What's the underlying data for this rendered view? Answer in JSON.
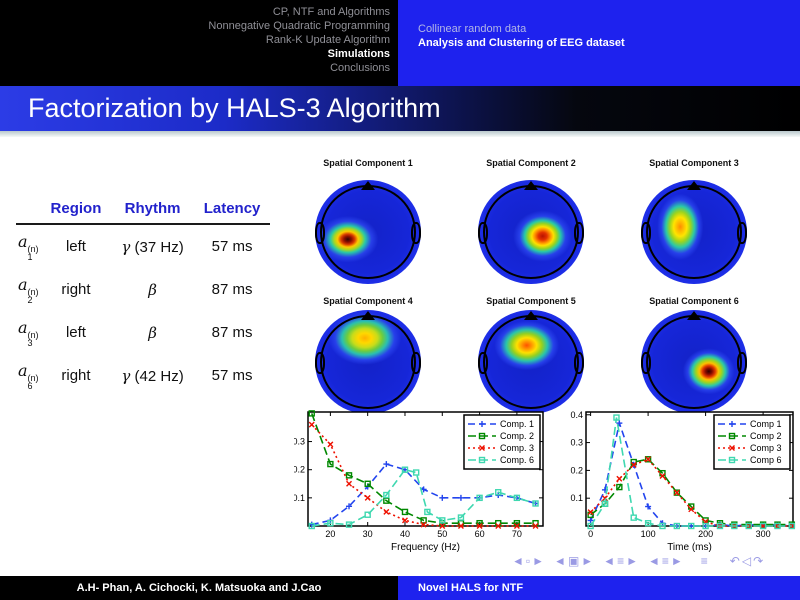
{
  "colors": {
    "header_blue": "#1e22ee",
    "title_gradient_left": "#2c3ce6",
    "table_header_text": "#2222cc",
    "nav_symbols": "#9a9ae4",
    "series_blue": "#2244ee",
    "series_green": "#008800",
    "series_red": "#ee1100",
    "series_cyan": "#3fd8b0"
  },
  "header": {
    "nav_left": [
      {
        "label": "CP, NTF and Algorithms",
        "active": false
      },
      {
        "label": "Nonnegative Quadratic Programming",
        "active": false
      },
      {
        "label": "Rank-K Update Algorithm",
        "active": false
      },
      {
        "label": "Simulations",
        "active": true
      },
      {
        "label": "Conclusions",
        "active": false
      }
    ],
    "nav_right": [
      {
        "label": "Collinear random data",
        "active": false
      },
      {
        "label": "Analysis and Clustering of EEG dataset",
        "active": true
      }
    ]
  },
  "title": "Factorization by HALS-3 Algorithm",
  "table": {
    "headers": [
      "Region",
      "Rhythm",
      "Latency"
    ],
    "rows": [
      {
        "var": "a",
        "sup": "(n)",
        "sub": "1",
        "region": "left",
        "rhythm": "γ (37 Hz)",
        "latency": "57 ms"
      },
      {
        "var": "a",
        "sup": "(n)",
        "sub": "2",
        "region": "right",
        "rhythm": "β",
        "latency": "87 ms"
      },
      {
        "var": "a",
        "sup": "(n)",
        "sub": "3",
        "region": "left",
        "rhythm": "β",
        "latency": "87 ms"
      },
      {
        "var": "a",
        "sup": "(n)",
        "sub": "6",
        "region": "right",
        "rhythm": "γ (42 Hz)",
        "latency": "57 ms"
      }
    ]
  },
  "components": [
    {
      "label": "Spatial Component 1",
      "hot": {
        "x": "31%",
        "y": "57%",
        "rx": "36%",
        "ry": "28%",
        "stops": [
          "#300404 0%",
          "#8c0f00 10%",
          "#d83a00 18%",
          "#ffc800 27%",
          "#a8d820 36%",
          "#28c8a8 46%",
          "#2840e8 62%",
          "rgba(34,52,224,0) 80%"
        ]
      }
    },
    {
      "label": "Spatial Component 2",
      "hot": {
        "x": "61%",
        "y": "54%",
        "rx": "34%",
        "ry": "30%",
        "stops": [
          "#b81400 0%",
          "#e23000 12%",
          "#ff9000 22%",
          "#ffe000 30%",
          "#98d41e 40%",
          "#26c8aa 50%",
          "#2740ea 64%",
          "rgba(34,52,224,0) 82%"
        ]
      }
    },
    {
      "label": "Spatial Component 3",
      "hot": {
        "x": "37%",
        "y": "45%",
        "rx": "26%",
        "ry": "38%",
        "stops": [
          "#ff8c00 0%",
          "#ffc000 14%",
          "#ffe400 24%",
          "#9cd41e 38%",
          "#2ac8a8 52%",
          "#2740ea 68%",
          "rgba(34,52,224,0) 84%"
        ]
      }
    },
    {
      "label": "Spatial Component 4",
      "hot": {
        "x": "47%",
        "y": "27%",
        "rx": "40%",
        "ry": "30%",
        "stops": [
          "#ffb000 0%",
          "#ffd800 16%",
          "#c8dc1a 30%",
          "#6ccc40 42%",
          "#2ac0b0 54%",
          "#2740ea 70%",
          "rgba(34,52,224,0) 86%"
        ]
      }
    },
    {
      "label": "Spatial Component 5",
      "hot": {
        "x": "46%",
        "y": "34%",
        "rx": "36%",
        "ry": "28%",
        "stops": [
          "#ff5200 0%",
          "#ff9c00 14%",
          "#ffe000 26%",
          "#94d020 40%",
          "#28c4ac 54%",
          "#2740ea 70%",
          "rgba(34,52,224,0) 85%"
        ]
      }
    },
    {
      "label": "Spatial Component 6",
      "hot": {
        "x": "64%",
        "y": "59%",
        "rx": "30%",
        "ry": "27%",
        "stops": [
          "#2e0000 0%",
          "#800a00 10%",
          "#e03800 20%",
          "#ffc000 30%",
          "#a0d41e 40%",
          "#2ac8a8 52%",
          "#2740ea 66%",
          "rgba(34,52,224,0) 82%"
        ]
      }
    }
  ],
  "chart_data": [
    {
      "type": "line",
      "title": "",
      "xlabel": "Frequency (Hz)",
      "ylabel": "",
      "xlim": [
        14,
        77
      ],
      "ylim": [
        0,
        0.405
      ],
      "xticks": [
        20,
        30,
        40,
        50,
        60,
        70
      ],
      "yticks": [
        0.1,
        0.2,
        0.3
      ],
      "grid": false,
      "legend_position": "top-right",
      "series": [
        {
          "name": "Comp. 1",
          "color": "#2244ee",
          "dash": "7 4",
          "marker": "plus",
          "x": [
            15,
            20,
            25,
            30,
            35,
            40,
            45,
            50,
            55,
            60,
            65,
            70,
            75
          ],
          "y": [
            0.005,
            0.02,
            0.07,
            0.14,
            0.22,
            0.2,
            0.13,
            0.1,
            0.1,
            0.1,
            0.11,
            0.1,
            0.08
          ]
        },
        {
          "name": "Comp. 2",
          "color": "#008800",
          "dash": "8 4",
          "marker": "square",
          "x": [
            15,
            20,
            25,
            30,
            35,
            40,
            45,
            50,
            55,
            60,
            65,
            70,
            75
          ],
          "y": [
            0.4,
            0.22,
            0.18,
            0.15,
            0.09,
            0.05,
            0.02,
            0.01,
            0.01,
            0.01,
            0.01,
            0.01,
            0.01
          ]
        },
        {
          "name": "Comp. 3",
          "color": "#ee1100",
          "dash": "2 3",
          "marker": "cross",
          "x": [
            15,
            20,
            25,
            30,
            35,
            40,
            45,
            50,
            55,
            60,
            65,
            70,
            75
          ],
          "y": [
            0.36,
            0.29,
            0.15,
            0.1,
            0.05,
            0.02,
            0.005,
            0,
            0,
            0,
            0,
            0,
            0
          ]
        },
        {
          "name": "Comp. 6",
          "color": "#3fd8b0",
          "dash": "8 4",
          "marker": "square",
          "x": [
            15,
            20,
            25,
            30,
            35,
            40,
            43,
            46,
            50,
            55,
            60,
            65,
            70,
            75
          ],
          "y": [
            0,
            0.01,
            0.005,
            0.04,
            0.11,
            0.2,
            0.19,
            0.05,
            0.02,
            0.03,
            0.1,
            0.12,
            0.1,
            0.08
          ]
        }
      ]
    },
    {
      "type": "line",
      "title": "",
      "xlabel": "Time (ms)",
      "ylabel": "",
      "xlim": [
        -8,
        352
      ],
      "ylim": [
        0,
        0.41
      ],
      "xticks": [
        0,
        100,
        200,
        300
      ],
      "yticks": [
        0.1,
        0.2,
        0.3,
        0.4
      ],
      "grid": false,
      "legend_position": "top-right",
      "series": [
        {
          "name": "Comp 1",
          "color": "#2244ee",
          "dash": "7 4",
          "marker": "plus",
          "x": [
            0,
            25,
            50,
            75,
            100,
            125,
            150,
            175,
            200,
            225,
            250,
            275,
            300,
            325,
            350
          ],
          "y": [
            0.02,
            0.13,
            0.37,
            0.22,
            0.07,
            0.01,
            0,
            0,
            0,
            0.005,
            0,
            0.005,
            0,
            0.005,
            0
          ]
        },
        {
          "name": "Comp 2",
          "color": "#008800",
          "dash": "8 4",
          "marker": "square",
          "x": [
            0,
            25,
            50,
            75,
            100,
            125,
            150,
            175,
            200,
            225,
            250,
            275,
            300,
            325,
            350
          ],
          "y": [
            0.04,
            0.08,
            0.14,
            0.23,
            0.24,
            0.19,
            0.12,
            0.07,
            0.02,
            0.01,
            0.005,
            0.005,
            0.005,
            0.005,
            0.005
          ]
        },
        {
          "name": "Comp 3",
          "color": "#ee1100",
          "dash": "2 3",
          "marker": "cross",
          "x": [
            0,
            25,
            50,
            75,
            100,
            125,
            150,
            175,
            200,
            225,
            250,
            275,
            300,
            325,
            350
          ],
          "y": [
            0.05,
            0.1,
            0.17,
            0.22,
            0.24,
            0.18,
            0.12,
            0.06,
            0.015,
            0,
            0,
            0,
            0,
            0,
            0
          ]
        },
        {
          "name": "Comp 6",
          "color": "#3fd8b0",
          "dash": "8 4",
          "marker": "square",
          "x": [
            0,
            25,
            45,
            75,
            100,
            125,
            150,
            175,
            200,
            225,
            250,
            275,
            300,
            325,
            350
          ],
          "y": [
            0,
            0.08,
            0.39,
            0.03,
            0.01,
            0,
            0,
            0,
            0,
            0,
            0,
            0,
            0,
            0,
            0
          ]
        }
      ]
    }
  ],
  "footer": {
    "authors": "A.H- Phan, A. Cichocki, K. Matsuoka and J.Cao",
    "short_title": "Novel HALS for NTF"
  },
  "nav_symbols": [
    {
      "name": "nav-prev-slide-icon",
      "glyph": "◄"
    },
    {
      "name": "nav-slide-icon",
      "glyph": "▫"
    },
    {
      "name": "nav-next-slide-icon",
      "glyph": "►"
    },
    {
      "name": "nav-prev-frame-icon",
      "glyph": "◄"
    },
    {
      "name": "nav-frame-icon",
      "glyph": "▣"
    },
    {
      "name": "nav-next-frame-icon",
      "glyph": "►"
    },
    {
      "name": "nav-prev-subsection-icon",
      "glyph": "◄"
    },
    {
      "name": "nav-subsection-icon",
      "glyph": "≡"
    },
    {
      "name": "nav-next-subsection-icon",
      "glyph": "►"
    },
    {
      "name": "nav-prev-section-icon",
      "glyph": "◄"
    },
    {
      "name": "nav-section-icon",
      "glyph": "≡"
    },
    {
      "name": "nav-next-section-icon",
      "glyph": "►"
    },
    {
      "name": "nav-appendix-icon",
      "glyph": "≡"
    },
    {
      "name": "nav-back-icon",
      "glyph": "↶"
    },
    {
      "name": "nav-search-icon",
      "glyph": "◁"
    },
    {
      "name": "nav-forward-icon",
      "glyph": "↷"
    }
  ]
}
